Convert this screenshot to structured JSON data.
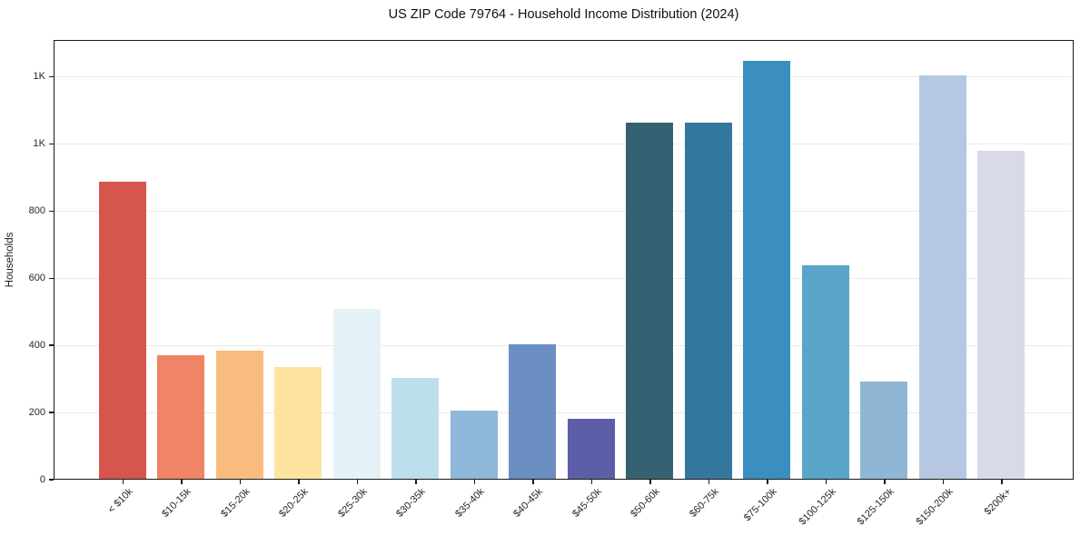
{
  "chart_data": {
    "type": "bar",
    "title": "US ZIP Code 79764 - Household Income Distribution (2024)",
    "xlabel": "",
    "ylabel": "Households",
    "categories": [
      "< $10k",
      "$10-15k",
      "$15-20k",
      "$20-25k",
      "$25-30k",
      "$30-35k",
      "$35-40k",
      "$40-45k",
      "$45-50k",
      "$50-60k",
      "$60-75k",
      "$75-100k",
      "$100-125k",
      "$125-150k",
      "$150-200k",
      "$200k+"
    ],
    "values": [
      884,
      367,
      381,
      332,
      505,
      300,
      202,
      400,
      178,
      1061,
      1061,
      1245,
      636,
      290,
      1202,
      977
    ],
    "bar_colors": [
      "#d6564e",
      "#f08466",
      "#f9bc7e",
      "#fde49e",
      "#e5f2f7",
      "#bddeed",
      "#8fb8da",
      "#6b8fc3",
      "#5c5ea8",
      "#356272",
      "#34779d",
      "#3a8ec0",
      "#5aa5c9",
      "#90b6d6",
      "#b6c8e1",
      "#d8dae8"
    ],
    "yticks": {
      "values": [
        0,
        200,
        400,
        600,
        800,
        1000,
        1200
      ],
      "labels": [
        "0",
        "200",
        "400",
        "600",
        "800",
        "1K",
        "1K"
      ]
    },
    "ylim": [
      0,
      1310
    ],
    "grid": "horizontal-only",
    "grid_color": "#ebebeb",
    "spine_color": "#1a1a1a",
    "background": "#ffffff",
    "legend": "none",
    "x_tick_rotation_deg": 45
  }
}
